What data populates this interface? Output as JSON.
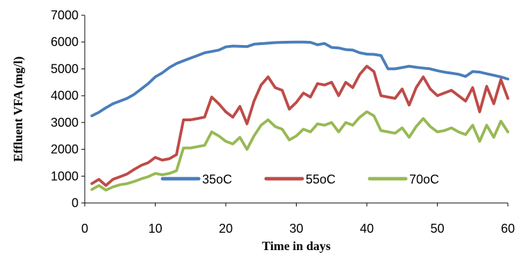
{
  "chart_data": {
    "type": "line",
    "xlabel": "Time in days",
    "ylabel": "Effluent VFA (mg/l)",
    "xlim": [
      0,
      60
    ],
    "ylim": [
      0,
      7000
    ],
    "xticks": [
      0,
      10,
      20,
      30,
      40,
      50,
      60
    ],
    "yticks": [
      0,
      1000,
      2000,
      3000,
      4000,
      5000,
      6000,
      7000
    ],
    "grid": false,
    "legend_position": "inside-bottom",
    "series": [
      {
        "name": "35oC",
        "color": "#4a7ebb",
        "points": [
          [
            1,
            3250
          ],
          [
            2,
            3380
          ],
          [
            3,
            3550
          ],
          [
            4,
            3700
          ],
          [
            5,
            3800
          ],
          [
            6,
            3900
          ],
          [
            7,
            4050
          ],
          [
            8,
            4250
          ],
          [
            9,
            4450
          ],
          [
            10,
            4700
          ],
          [
            11,
            4850
          ],
          [
            12,
            5050
          ],
          [
            13,
            5200
          ],
          [
            14,
            5300
          ],
          [
            15,
            5400
          ],
          [
            16,
            5500
          ],
          [
            17,
            5600
          ],
          [
            18,
            5650
          ],
          [
            19,
            5700
          ],
          [
            20,
            5820
          ],
          [
            21,
            5850
          ],
          [
            22,
            5840
          ],
          [
            23,
            5830
          ],
          [
            24,
            5920
          ],
          [
            25,
            5940
          ],
          [
            26,
            5960
          ],
          [
            27,
            5980
          ],
          [
            28,
            5990
          ],
          [
            29,
            5995
          ],
          [
            30,
            6000
          ],
          [
            31,
            6000
          ],
          [
            32,
            5990
          ],
          [
            33,
            5900
          ],
          [
            34,
            5950
          ],
          [
            35,
            5800
          ],
          [
            36,
            5780
          ],
          [
            37,
            5720
          ],
          [
            38,
            5700
          ],
          [
            39,
            5600
          ],
          [
            40,
            5550
          ],
          [
            41,
            5540
          ],
          [
            42,
            5500
          ],
          [
            43,
            5000
          ],
          [
            44,
            5000
          ],
          [
            45,
            5050
          ],
          [
            46,
            5100
          ],
          [
            47,
            5060
          ],
          [
            48,
            5030
          ],
          [
            49,
            5000
          ],
          [
            50,
            4930
          ],
          [
            51,
            4880
          ],
          [
            52,
            4840
          ],
          [
            53,
            4800
          ],
          [
            54,
            4720
          ],
          [
            55,
            4900
          ],
          [
            56,
            4880
          ],
          [
            57,
            4820
          ],
          [
            58,
            4760
          ],
          [
            59,
            4700
          ],
          [
            60,
            4620
          ]
        ]
      },
      {
        "name": "55oC",
        "color": "#be4b48",
        "points": [
          [
            1,
            720
          ],
          [
            2,
            880
          ],
          [
            3,
            650
          ],
          [
            4,
            880
          ],
          [
            5,
            980
          ],
          [
            6,
            1080
          ],
          [
            7,
            1250
          ],
          [
            8,
            1400
          ],
          [
            9,
            1500
          ],
          [
            10,
            1700
          ],
          [
            11,
            1600
          ],
          [
            12,
            1650
          ],
          [
            13,
            1800
          ],
          [
            14,
            3100
          ],
          [
            15,
            3100
          ],
          [
            16,
            3150
          ],
          [
            17,
            3200
          ],
          [
            18,
            3950
          ],
          [
            19,
            3700
          ],
          [
            20,
            3400
          ],
          [
            21,
            3200
          ],
          [
            22,
            3600
          ],
          [
            23,
            2950
          ],
          [
            24,
            3800
          ],
          [
            25,
            4400
          ],
          [
            26,
            4700
          ],
          [
            27,
            4300
          ],
          [
            28,
            4200
          ],
          [
            29,
            3500
          ],
          [
            30,
            3750
          ],
          [
            31,
            4100
          ],
          [
            32,
            3950
          ],
          [
            33,
            4450
          ],
          [
            34,
            4400
          ],
          [
            35,
            4500
          ],
          [
            36,
            4000
          ],
          [
            37,
            4500
          ],
          [
            38,
            4300
          ],
          [
            39,
            4800
          ],
          [
            40,
            5100
          ],
          [
            41,
            4900
          ],
          [
            42,
            4000
          ],
          [
            43,
            3950
          ],
          [
            44,
            3900
          ],
          [
            45,
            4250
          ],
          [
            46,
            3650
          ],
          [
            47,
            4300
          ],
          [
            48,
            4700
          ],
          [
            49,
            4250
          ],
          [
            50,
            4000
          ],
          [
            51,
            4100
          ],
          [
            52,
            4200
          ],
          [
            53,
            4000
          ],
          [
            54,
            3800
          ],
          [
            55,
            4300
          ],
          [
            56,
            3400
          ],
          [
            57,
            4350
          ],
          [
            58,
            3700
          ],
          [
            59,
            4600
          ],
          [
            60,
            3900
          ]
        ]
      },
      {
        "name": "70oC",
        "color": "#98b954",
        "points": [
          [
            1,
            500
          ],
          [
            2,
            650
          ],
          [
            3,
            480
          ],
          [
            4,
            600
          ],
          [
            5,
            680
          ],
          [
            6,
            720
          ],
          [
            7,
            800
          ],
          [
            8,
            900
          ],
          [
            9,
            980
          ],
          [
            10,
            1100
          ],
          [
            11,
            1050
          ],
          [
            12,
            1100
          ],
          [
            13,
            1200
          ],
          [
            14,
            2050
          ],
          [
            15,
            2050
          ],
          [
            16,
            2100
          ],
          [
            17,
            2150
          ],
          [
            18,
            2650
          ],
          [
            19,
            2500
          ],
          [
            20,
            2300
          ],
          [
            21,
            2200
          ],
          [
            22,
            2450
          ],
          [
            23,
            2000
          ],
          [
            24,
            2500
          ],
          [
            25,
            2900
          ],
          [
            26,
            3100
          ],
          [
            27,
            2850
          ],
          [
            28,
            2750
          ],
          [
            29,
            2350
          ],
          [
            30,
            2500
          ],
          [
            31,
            2750
          ],
          [
            32,
            2650
          ],
          [
            33,
            2950
          ],
          [
            34,
            2900
          ],
          [
            35,
            3000
          ],
          [
            36,
            2650
          ],
          [
            37,
            3000
          ],
          [
            38,
            2900
          ],
          [
            39,
            3200
          ],
          [
            40,
            3400
          ],
          [
            41,
            3250
          ],
          [
            42,
            2700
          ],
          [
            43,
            2650
          ],
          [
            44,
            2600
          ],
          [
            45,
            2800
          ],
          [
            46,
            2450
          ],
          [
            47,
            2850
          ],
          [
            48,
            3150
          ],
          [
            49,
            2850
          ],
          [
            50,
            2650
          ],
          [
            51,
            2700
          ],
          [
            52,
            2800
          ],
          [
            53,
            2650
          ],
          [
            54,
            2550
          ],
          [
            55,
            2900
          ],
          [
            56,
            2300
          ],
          [
            57,
            2900
          ],
          [
            58,
            2450
          ],
          [
            59,
            3050
          ],
          [
            60,
            2650
          ]
        ]
      }
    ]
  }
}
